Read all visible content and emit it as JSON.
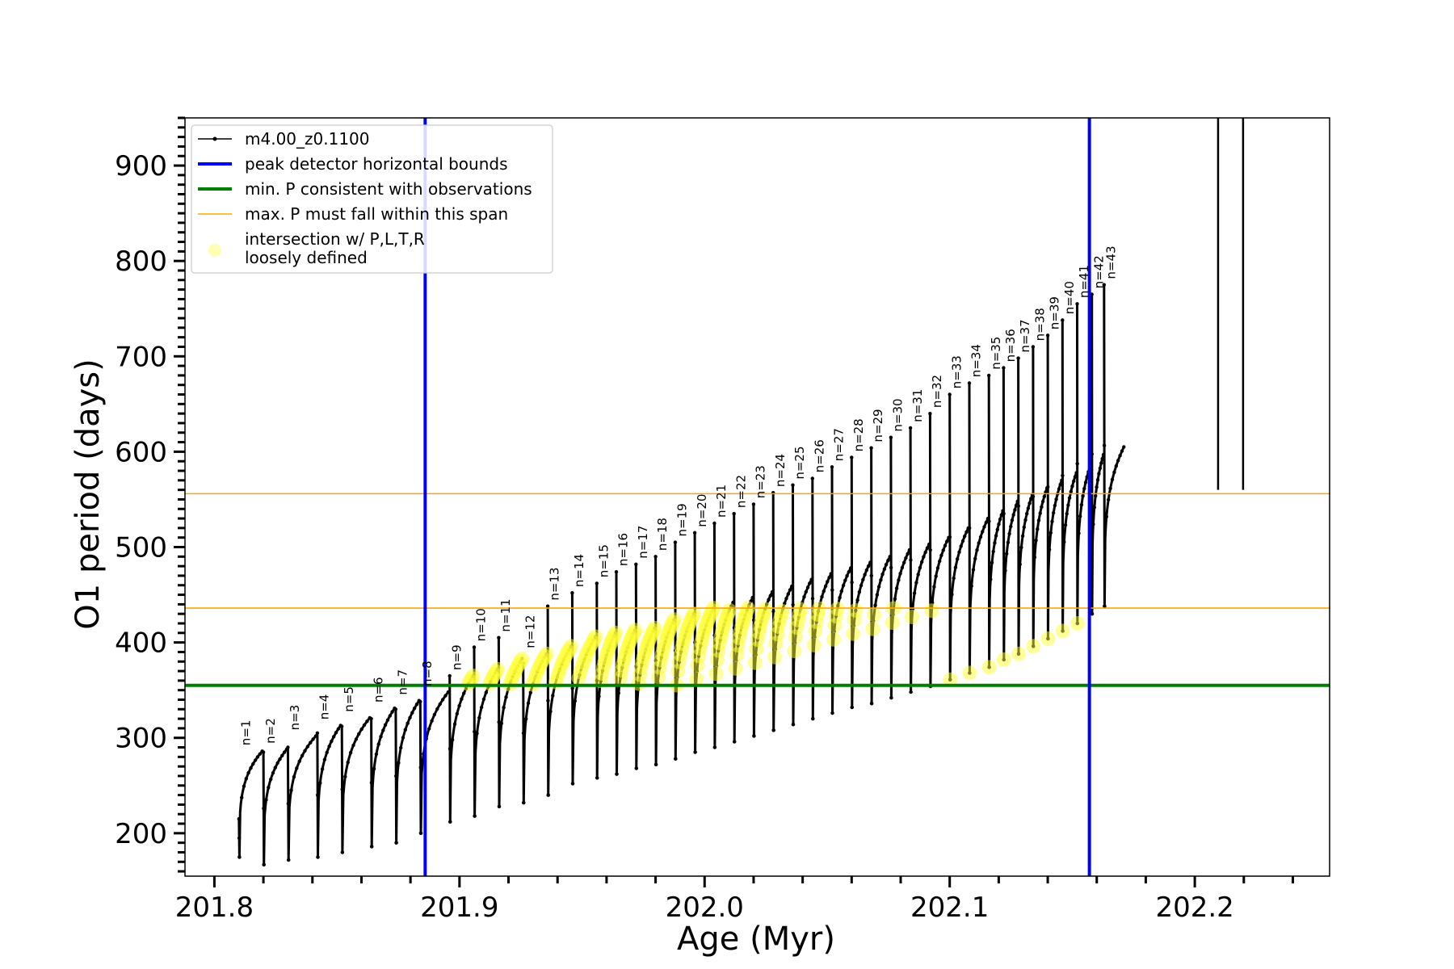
{
  "chart_data": {
    "type": "line",
    "title": "",
    "xlabel": "Age (Myr)",
    "ylabel": "O1 period (days)",
    "xlim": [
      201.788,
      202.255
    ],
    "ylim": [
      155,
      950
    ],
    "xticks": [
      201.8,
      201.9,
      202.0,
      202.1,
      202.2
    ],
    "xtick_labels": [
      "201.8",
      "201.9",
      "202.0",
      "202.1",
      "202.2"
    ],
    "yticks": [
      200,
      300,
      400,
      500,
      600,
      700,
      800,
      900
    ],
    "ytick_labels": [
      "200",
      "300",
      "400",
      "500",
      "600",
      "700",
      "800",
      "900"
    ],
    "x_minor_step": 0.02,
    "y_minor_step": 10,
    "grid": false,
    "legend_position": "upper-left",
    "legend": [
      {
        "label": "m4.00_z0.1100",
        "style": "line-marker",
        "color": "#000000"
      },
      {
        "label": "peak detector horizontal bounds",
        "style": "line-thick",
        "color": "#0000ff"
      },
      {
        "label": "min. P consistent with observations",
        "style": "line-thick",
        "color": "#008000"
      },
      {
        "label": "max. P must fall within this span",
        "style": "line-thin",
        "color": "#ffa500"
      },
      {
        "label": "intersection w/ P,L,T,R",
        "label2": "loosely defined",
        "style": "circle",
        "color": "#ffff66"
      }
    ],
    "vertical_lines": [
      {
        "name": "peak detector horizontal bounds",
        "x": 201.886,
        "color": "#0000ff"
      },
      {
        "name": "peak detector horizontal bounds",
        "x": 202.157,
        "color": "#0000ff"
      }
    ],
    "horizontal_lines": [
      {
        "name": "min. P consistent with observations",
        "y": 355,
        "color": "#008000"
      },
      {
        "name": "max. P must fall within this span",
        "y": 436,
        "color": "#ffa500"
      },
      {
        "name": "max. P must fall within this span",
        "y": 556,
        "color": "#ffa500"
      }
    ],
    "series": [
      {
        "name": "m4.00_z0.1100",
        "color": "#000000",
        "description_of_cycles": "columns: n, pulse start age (Myr), period at start (days), minimum period (days), peak period (days)",
        "cycles": [
          [
            1,
            201.81,
            215,
            175,
            286
          ],
          [
            2,
            201.82,
            285,
            167,
            288
          ],
          [
            3,
            201.83,
            290,
            172,
            302
          ],
          [
            4,
            201.842,
            305,
            175,
            313
          ],
          [
            5,
            201.852,
            312,
            180,
            321
          ],
          [
            6,
            201.864,
            320,
            186,
            331
          ],
          [
            7,
            201.874,
            330,
            190,
            339
          ],
          [
            8,
            201.884,
            338,
            200,
            348
          ],
          [
            9,
            201.896,
            365,
            212,
            365
          ],
          [
            10,
            201.906,
            395,
            218,
            372
          ],
          [
            11,
            201.916,
            405,
            228,
            383
          ],
          [
            12,
            201.926,
            378,
            232,
            388
          ],
          [
            13,
            201.936,
            438,
            240,
            396
          ],
          [
            14,
            201.946,
            452,
            252,
            406
          ],
          [
            15,
            201.956,
            462,
            258,
            410
          ],
          [
            16,
            201.964,
            474,
            262,
            413
          ],
          [
            17,
            201.972,
            482,
            268,
            415
          ],
          [
            18,
            201.98,
            490,
            272,
            424
          ],
          [
            19,
            201.988,
            505,
            278,
            430
          ],
          [
            20,
            201.996,
            515,
            285,
            436
          ],
          [
            21,
            202.004,
            525,
            290,
            442
          ],
          [
            22,
            202.012,
            535,
            296,
            447
          ],
          [
            23,
            202.02,
            545,
            302,
            453
          ],
          [
            24,
            202.028,
            557,
            308,
            459
          ],
          [
            25,
            202.036,
            565,
            314,
            466
          ],
          [
            26,
            202.044,
            572,
            320,
            472
          ],
          [
            27,
            202.052,
            584,
            326,
            478
          ],
          [
            28,
            202.06,
            594,
            332,
            484
          ],
          [
            29,
            202.068,
            604,
            336,
            490
          ],
          [
            30,
            202.076,
            615,
            342,
            497
          ],
          [
            31,
            202.084,
            625,
            348,
            503
          ],
          [
            32,
            202.092,
            640,
            354,
            510
          ],
          [
            33,
            202.1,
            660,
            361,
            520
          ],
          [
            34,
            202.108,
            672,
            368,
            530
          ],
          [
            35,
            202.116,
            680,
            374,
            538
          ],
          [
            36,
            202.122,
            688,
            382,
            548
          ],
          [
            37,
            202.128,
            698,
            388,
            555
          ],
          [
            38,
            202.134,
            710,
            396,
            562
          ],
          [
            39,
            202.14,
            722,
            404,
            570
          ],
          [
            40,
            202.146,
            738,
            412,
            578
          ],
          [
            41,
            202.152,
            755,
            420,
            588
          ],
          [
            42,
            202.158,
            765,
            430,
            597
          ],
          [
            43,
            202.163,
            775,
            438,
            605
          ]
        ]
      }
    ],
    "annotations": [
      "n=1",
      "n=2",
      "n=3",
      "n=4",
      "n=5",
      "n=6",
      "n=7",
      "n=8",
      "n=9",
      "n=10",
      "n=11",
      "n=12",
      "n=13",
      "n=14",
      "n=15",
      "n=16",
      "n=17",
      "n=18",
      "n=19",
      "n=20",
      "n=21",
      "n=22",
      "n=23",
      "n=24",
      "n=25",
      "n=26",
      "n=27",
      "n=28",
      "n=29",
      "n=30",
      "n=31",
      "n=32",
      "n=33",
      "n=34",
      "n=35",
      "n=36",
      "n=37",
      "n=38",
      "n=39",
      "n=40",
      "n=41",
      "n=42",
      "n=43"
    ]
  }
}
